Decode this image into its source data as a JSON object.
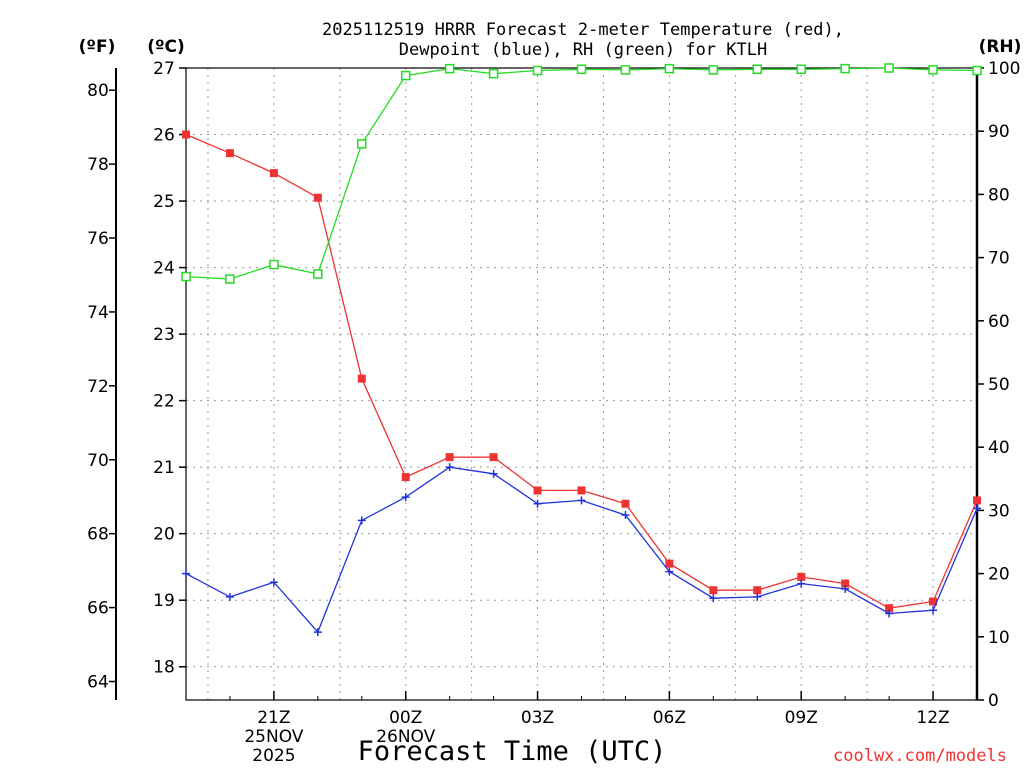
{
  "chart_data": {
    "type": "line",
    "title_line1": "2025112519 HRRR Forecast 2-meter Temperature (red),",
    "title_line2": "Dewpoint (blue), RH (green) for KTLH",
    "xlabel": "Forecast Time (UTC)",
    "watermark": "coolwx.com/models",
    "axis_f": {
      "label": "(ºF)",
      "ticks": [
        64,
        66,
        68,
        70,
        72,
        74,
        76,
        78,
        80
      ]
    },
    "axis_c": {
      "label": "(ºC)",
      "range": [
        17.5,
        27
      ],
      "ticks": [
        18,
        19,
        20,
        21,
        22,
        23,
        24,
        25,
        26,
        27
      ]
    },
    "axis_rh": {
      "label": "(RH)",
      "range": [
        0,
        100
      ],
      "ticks": [
        0,
        10,
        20,
        30,
        40,
        50,
        60,
        70,
        80,
        90,
        100
      ]
    },
    "x_range": [
      19,
      37
    ],
    "x_ticks": [
      {
        "x": 21,
        "label": "21Z",
        "sub1": "25NOV",
        "sub2": "2025"
      },
      {
        "x": 24,
        "label": "00Z",
        "sub1": "26NOV",
        "sub2": ""
      },
      {
        "x": 27,
        "label": "03Z",
        "sub1": "",
        "sub2": ""
      },
      {
        "x": 30,
        "label": "06Z",
        "sub1": "",
        "sub2": ""
      },
      {
        "x": 33,
        "label": "09Z",
        "sub1": "",
        "sub2": ""
      },
      {
        "x": 36,
        "label": "12Z",
        "sub1": "",
        "sub2": ""
      }
    ],
    "series": [
      {
        "name": "Temperature",
        "color": "#ee3333",
        "axis": "c",
        "marker": "filled-square",
        "x": [
          19,
          20,
          21,
          22,
          23,
          24,
          25,
          26,
          27,
          28,
          29,
          30,
          31,
          32,
          33,
          34,
          35,
          36,
          37
        ],
        "values": [
          26.0,
          25.72,
          25.42,
          25.05,
          22.33,
          20.85,
          21.15,
          21.15,
          20.65,
          20.65,
          20.45,
          19.55,
          19.15,
          19.15,
          19.35,
          19.25,
          18.88,
          18.98,
          20.5
        ]
      },
      {
        "name": "Dewpoint",
        "color": "#2233dd",
        "axis": "c",
        "marker": "plus",
        "x": [
          19,
          20,
          21,
          22,
          23,
          24,
          25,
          26,
          27,
          28,
          29,
          30,
          31,
          32,
          33,
          34,
          35,
          36,
          37
        ],
        "values": [
          19.4,
          19.05,
          19.27,
          18.52,
          20.2,
          20.55,
          21.0,
          20.9,
          20.45,
          20.5,
          20.28,
          19.43,
          19.03,
          19.05,
          19.25,
          19.17,
          18.8,
          18.85,
          20.38
        ]
      },
      {
        "name": "RH",
        "color": "#22dd22",
        "axis": "rh",
        "marker": "open-square",
        "x": [
          19,
          20,
          21,
          22,
          23,
          24,
          25,
          26,
          27,
          28,
          29,
          30,
          31,
          32,
          33,
          34,
          35,
          36,
          37
        ],
        "values": [
          67.0,
          66.6,
          68.9,
          67.4,
          88.0,
          98.8,
          99.9,
          99.1,
          99.6,
          99.8,
          99.7,
          99.9,
          99.7,
          99.8,
          99.8,
          99.9,
          100.0,
          99.7,
          99.6
        ]
      }
    ]
  }
}
